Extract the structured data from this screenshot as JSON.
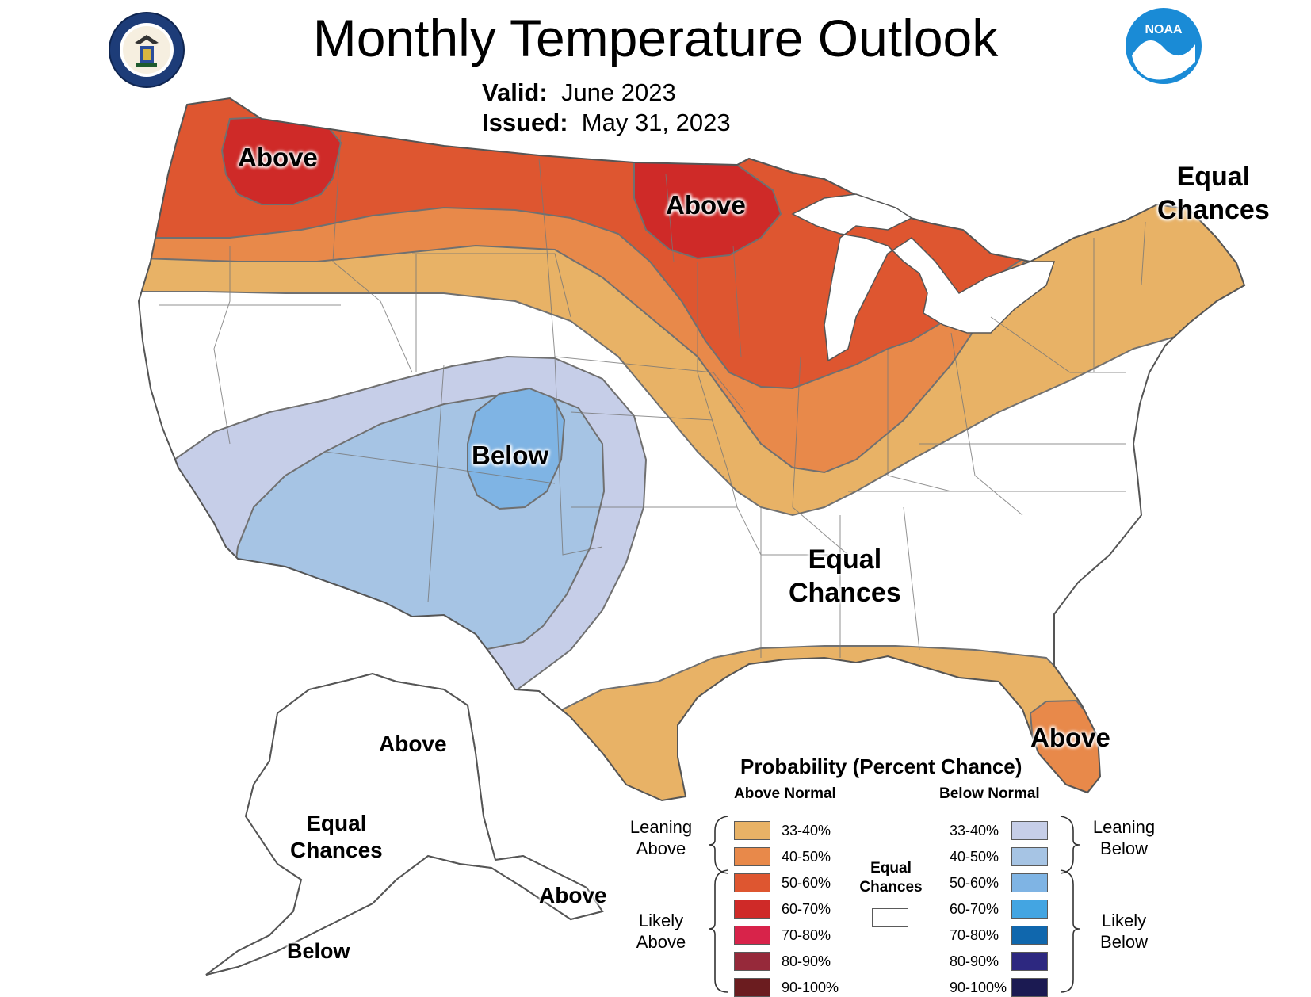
{
  "header": {
    "title": "Monthly Temperature Outlook",
    "valid_label": "Valid:",
    "valid_value": "June 2023",
    "issued_label": "Issued:",
    "issued_value": "May 31, 2023"
  },
  "logos": {
    "commerce_seal": "DEPARTMENT OF COMMERCE UNITED STATES OF AMERICA",
    "noaa": "NOAA"
  },
  "map_labels": {
    "above_pacific_nw": "Above",
    "above_upper_midwest": "Above",
    "equal_chances_northeast": [
      "Equal",
      "Chances"
    ],
    "below_four_corners": "Below",
    "equal_chances_southeast": [
      "Equal",
      "Chances"
    ],
    "above_florida": "Above",
    "above_alaska_north": "Above",
    "equal_chances_alaska": [
      "Equal",
      "Chances"
    ],
    "above_alaska_southeast": "Above",
    "below_alaska_southwest": "Below"
  },
  "colors": {
    "above_33_40": "#e8b266",
    "above_40_50": "#e8894a",
    "above_50_60": "#de5630",
    "above_60_70": "#cf2a28",
    "above_70_80": "#d8234a",
    "above_80_90": "#96293a",
    "above_90_100": "#6b1c1f",
    "below_33_40": "#c6cee8",
    "below_40_50": "#a6c4e4",
    "below_50_60": "#7fb4e4",
    "below_60_70": "#43a5e2",
    "below_70_80": "#1067ad",
    "below_80_90": "#2d2880",
    "below_90_100": "#1b1a52",
    "equal_chances": "#ffffff",
    "border": "#707070"
  },
  "legend": {
    "title": "Probability (Percent Chance)",
    "above_header": "Above Normal",
    "below_header": "Below Normal",
    "categories": [
      "33-40%",
      "40-50%",
      "50-60%",
      "60-70%",
      "70-80%",
      "80-90%",
      "90-100%"
    ],
    "leaning_above": [
      "Leaning",
      "Above"
    ],
    "likely_above": [
      "Likely",
      "Above"
    ],
    "leaning_below": [
      "Leaning",
      "Below"
    ],
    "likely_below": [
      "Likely",
      "Below"
    ],
    "equal_chances": [
      "Equal",
      "Chances"
    ]
  }
}
